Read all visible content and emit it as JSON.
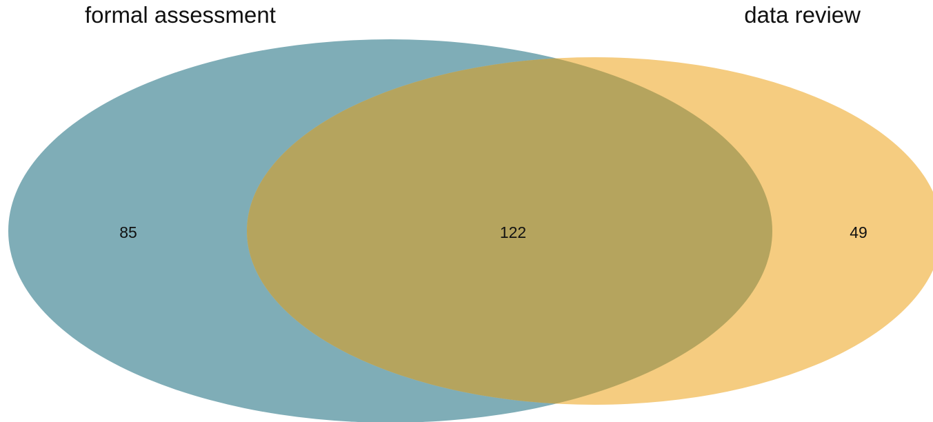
{
  "diagram": {
    "type": "venn",
    "sets": [
      {
        "name": "formal assessment",
        "only_count": "85",
        "color": "#7FADB7"
      },
      {
        "name": "data review",
        "only_count": "49",
        "color": "#F5CC80"
      }
    ],
    "intersection": {
      "count": "122",
      "color": "#B5A45E"
    }
  }
}
